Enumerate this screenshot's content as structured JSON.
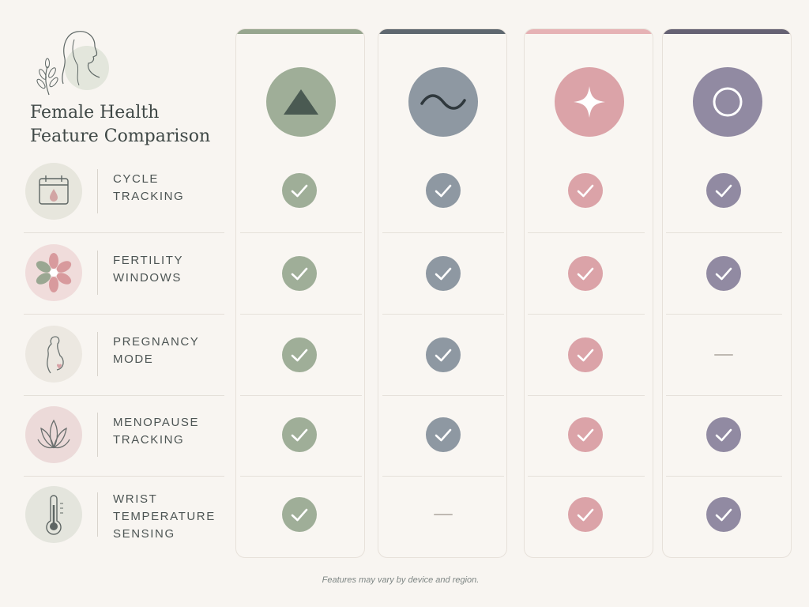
{
  "title_lines": [
    "Female Health",
    "Feature Comparison"
  ],
  "colors": {
    "col1": "#9fae98",
    "col2": "#8e98a2",
    "col3": "#dba3a8",
    "col4": "#918aa2",
    "bar1": "#97a68f",
    "bar2": "#5f6870",
    "bar3": "#e6b2b5",
    "bar4": "#666274"
  },
  "columns": [
    {
      "icon": "triangle-icon",
      "color": "#9fae98"
    },
    {
      "icon": "wave-icon",
      "color": "#8e98a2"
    },
    {
      "icon": "sparkle-icon",
      "color": "#dba3a8"
    },
    {
      "icon": "ring-icon",
      "color": "#918aa2"
    }
  ],
  "features": [
    {
      "label_lines": [
        "CYCLE",
        "TRACKING"
      ],
      "icon": "calendar-drop-icon",
      "support": [
        true,
        true,
        true,
        true
      ]
    },
    {
      "label_lines": [
        "FERTILITY",
        "WINDOWS"
      ],
      "icon": "flower-icon",
      "support": [
        true,
        true,
        true,
        true
      ]
    },
    {
      "label_lines": [
        "PREGNANCY",
        "MODE"
      ],
      "icon": "pregnant-silhouette-icon",
      "support": [
        true,
        true,
        true,
        false
      ]
    },
    {
      "label_lines": [
        "MENOPAUSE",
        "TRACKING"
      ],
      "icon": "lotus-icon",
      "support": [
        true,
        true,
        true,
        true
      ]
    },
    {
      "label_lines": [
        "WRIST",
        "TEMPERATURE",
        "SENSING"
      ],
      "icon": "thermometer-icon",
      "support": [
        true,
        false,
        true,
        true
      ]
    }
  ],
  "footnote": "Features may vary by device and region."
}
